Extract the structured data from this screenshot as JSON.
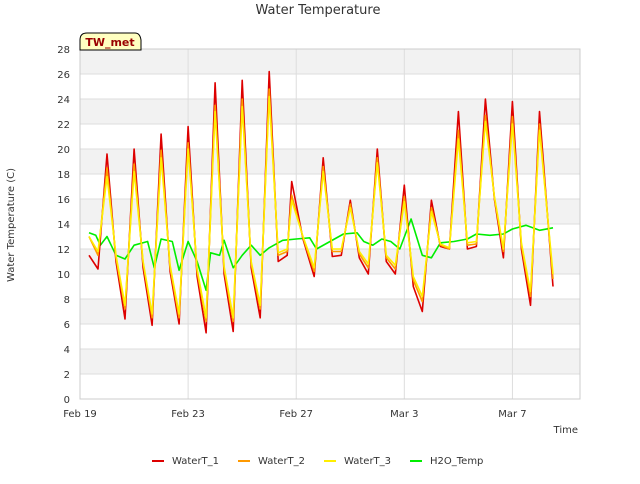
{
  "chart_data": {
    "type": "line",
    "title": "Water Temperature",
    "xlabel": "Time",
    "ylabel": "Water Temperature (C)",
    "site_label": "TW_met",
    "x_unit": "date",
    "xlim": [
      "2022-02-19",
      "2022-03-09T12:00"
    ],
    "ylim": [
      0,
      28
    ],
    "y_ticks": [
      0,
      2,
      4,
      6,
      8,
      10,
      12,
      14,
      16,
      18,
      20,
      22,
      24,
      26,
      28
    ],
    "x_ticks": [
      {
        "date": "2022-02-19",
        "label": "Feb 19"
      },
      {
        "date": "2022-02-23",
        "label": "Feb 23"
      },
      {
        "date": "2022-02-27",
        "label": "Feb 27"
      },
      {
        "date": "2022-03-03",
        "label": "Mar 3"
      },
      {
        "date": "2022-03-07",
        "label": "Mar 7"
      }
    ],
    "grid": true,
    "banded_background": true,
    "legend_position": "bottom",
    "series": [
      {
        "name": "WaterT_1",
        "color": "#dd0000",
        "points": [
          [
            "2022-02-19T08:00",
            11.5
          ],
          [
            "2022-02-19T16:00",
            10.4
          ],
          [
            "2022-02-20T00:00",
            19.6
          ],
          [
            "2022-02-20T08:00",
            11.0
          ],
          [
            "2022-02-20T16:00",
            6.4
          ],
          [
            "2022-02-21T00:00",
            20.0
          ],
          [
            "2022-02-21T08:00",
            10.5
          ],
          [
            "2022-02-21T16:00",
            5.9
          ],
          [
            "2022-02-22T00:00",
            21.2
          ],
          [
            "2022-02-22T08:00",
            10.2
          ],
          [
            "2022-02-22T16:00",
            6.0
          ],
          [
            "2022-02-23T00:00",
            21.8
          ],
          [
            "2022-02-23T08:00",
            9.8
          ],
          [
            "2022-02-23T16:00",
            5.3
          ],
          [
            "2022-02-24T00:00",
            25.3
          ],
          [
            "2022-02-24T08:00",
            10.0
          ],
          [
            "2022-02-24T16:00",
            5.4
          ],
          [
            "2022-02-25T00:00",
            25.5
          ],
          [
            "2022-02-25T08:00",
            10.5
          ],
          [
            "2022-02-25T16:00",
            6.5
          ],
          [
            "2022-02-26T00:00",
            26.2
          ],
          [
            "2022-02-26T08:00",
            11.0
          ],
          [
            "2022-02-26T16:00",
            11.5
          ],
          [
            "2022-02-26T20:00",
            17.4
          ],
          [
            "2022-02-27T06:00",
            12.8
          ],
          [
            "2022-02-27T16:00",
            9.8
          ],
          [
            "2022-02-28T00:00",
            19.3
          ],
          [
            "2022-02-28T08:00",
            11.4
          ],
          [
            "2022-02-28T16:00",
            11.5
          ],
          [
            "2022-02-29T00:00",
            15.9
          ],
          [
            "2022-03-01T08:00",
            11.3
          ],
          [
            "2022-03-01T16:00",
            10.0
          ],
          [
            "2022-03-02T00:00",
            20.0
          ],
          [
            "2022-03-02T08:00",
            11.0
          ],
          [
            "2022-03-02T16:00",
            10.0
          ],
          [
            "2022-03-03T00:00",
            17.1
          ],
          [
            "2022-03-03T08:00",
            9.0
          ],
          [
            "2022-03-03T16:00",
            7.0
          ],
          [
            "2022-03-04T00:00",
            15.9
          ],
          [
            "2022-03-04T08:00",
            12.2
          ],
          [
            "2022-03-04T16:00",
            12.0
          ],
          [
            "2022-03-05T00:00",
            23.0
          ],
          [
            "2022-03-05T08:00",
            12.0
          ],
          [
            "2022-03-05T16:00",
            12.2
          ],
          [
            "2022-03-06T00:00",
            24.0
          ],
          [
            "2022-03-06T08:00",
            16.0
          ],
          [
            "2022-03-06T16:00",
            11.3
          ],
          [
            "2022-03-07T00:00",
            23.8
          ],
          [
            "2022-03-07T08:00",
            12.0
          ],
          [
            "2022-03-07T16:00",
            7.5
          ],
          [
            "2022-03-08T00:00",
            23.0
          ],
          [
            "2022-03-08T12:00",
            9.0
          ]
        ]
      },
      {
        "name": "WaterT_2",
        "color": "#ff9900",
        "points": [
          [
            "2022-02-19T08:00",
            13.0
          ],
          [
            "2022-02-19T16:00",
            11.5
          ],
          [
            "2022-02-20T00:00",
            18.5
          ],
          [
            "2022-02-20T08:00",
            11.3
          ],
          [
            "2022-02-20T16:00",
            7.2
          ],
          [
            "2022-02-21T00:00",
            18.8
          ],
          [
            "2022-02-21T08:00",
            10.9
          ],
          [
            "2022-02-21T16:00",
            6.5
          ],
          [
            "2022-02-22T00:00",
            19.9
          ],
          [
            "2022-02-22T08:00",
            10.5
          ],
          [
            "2022-02-22T16:00",
            6.5
          ],
          [
            "2022-02-23T00:00",
            20.5
          ],
          [
            "2022-02-23T08:00",
            10.2
          ],
          [
            "2022-02-23T16:00",
            6.2
          ],
          [
            "2022-02-24T00:00",
            23.5
          ],
          [
            "2022-02-24T08:00",
            10.4
          ],
          [
            "2022-02-24T16:00",
            6.2
          ],
          [
            "2022-02-25T00:00",
            24.0
          ],
          [
            "2022-02-25T08:00",
            10.8
          ],
          [
            "2022-02-25T16:00",
            7.2
          ],
          [
            "2022-02-26T00:00",
            24.8
          ],
          [
            "2022-02-26T08:00",
            11.5
          ],
          [
            "2022-02-26T16:00",
            11.8
          ],
          [
            "2022-02-26T20:00",
            16.3
          ],
          [
            "2022-02-27T06:00",
            12.9
          ],
          [
            "2022-02-27T16:00",
            10.2
          ],
          [
            "2022-02-28T00:00",
            18.6
          ],
          [
            "2022-02-28T08:00",
            11.8
          ],
          [
            "2022-02-28T16:00",
            11.8
          ],
          [
            "2022-02-29T00:00",
            15.6
          ],
          [
            "2022-03-01T08:00",
            11.6
          ],
          [
            "2022-03-01T16:00",
            10.5
          ],
          [
            "2022-03-02T00:00",
            19.3
          ],
          [
            "2022-03-02T08:00",
            11.3
          ],
          [
            "2022-03-02T16:00",
            10.4
          ],
          [
            "2022-03-03T00:00",
            16.2
          ],
          [
            "2022-03-03T08:00",
            9.5
          ],
          [
            "2022-03-03T16:00",
            7.8
          ],
          [
            "2022-03-04T00:00",
            15.3
          ],
          [
            "2022-03-04T08:00",
            12.3
          ],
          [
            "2022-03-04T16:00",
            12.0
          ],
          [
            "2022-03-05T00:00",
            21.5
          ],
          [
            "2022-03-05T08:00",
            12.3
          ],
          [
            "2022-03-05T16:00",
            12.4
          ],
          [
            "2022-03-06T00:00",
            22.7
          ],
          [
            "2022-03-06T08:00",
            16.1
          ],
          [
            "2022-03-06T16:00",
            11.8
          ],
          [
            "2022-03-07T00:00",
            22.6
          ],
          [
            "2022-03-07T08:00",
            12.3
          ],
          [
            "2022-03-07T16:00",
            8.2
          ],
          [
            "2022-03-08T00:00",
            22.0
          ],
          [
            "2022-03-08T12:00",
            9.6
          ]
        ]
      },
      {
        "name": "WaterT_3",
        "color": "#ffee00",
        "points": [
          [
            "2022-02-19T08:00",
            13.0
          ],
          [
            "2022-02-19T16:00",
            11.8
          ],
          [
            "2022-02-20T00:00",
            17.8
          ],
          [
            "2022-02-20T08:00",
            11.5
          ],
          [
            "2022-02-20T16:00",
            7.5
          ],
          [
            "2022-02-21T00:00",
            18.2
          ],
          [
            "2022-02-21T08:00",
            11.0
          ],
          [
            "2022-02-21T16:00",
            6.8
          ],
          [
            "2022-02-22T00:00",
            19.3
          ],
          [
            "2022-02-22T08:00",
            10.7
          ],
          [
            "2022-02-22T16:00",
            6.8
          ],
          [
            "2022-02-23T00:00",
            20.0
          ],
          [
            "2022-02-23T08:00",
            10.4
          ],
          [
            "2022-02-23T16:00",
            6.5
          ],
          [
            "2022-02-24T00:00",
            23.0
          ],
          [
            "2022-02-24T08:00",
            10.6
          ],
          [
            "2022-02-24T16:00",
            6.5
          ],
          [
            "2022-02-25T00:00",
            23.4
          ],
          [
            "2022-02-25T08:00",
            11.0
          ],
          [
            "2022-02-25T16:00",
            7.5
          ],
          [
            "2022-02-26T00:00",
            24.2
          ],
          [
            "2022-02-26T08:00",
            11.7
          ],
          [
            "2022-02-26T16:00",
            12.0
          ],
          [
            "2022-02-26T20:00",
            15.9
          ],
          [
            "2022-02-27T06:00",
            13.0
          ],
          [
            "2022-02-27T16:00",
            10.5
          ],
          [
            "2022-02-28T00:00",
            18.2
          ],
          [
            "2022-02-28T08:00",
            12.0
          ],
          [
            "2022-02-28T16:00",
            12.0
          ],
          [
            "2022-02-29T00:00",
            15.3
          ],
          [
            "2022-03-01T08:00",
            11.8
          ],
          [
            "2022-03-01T16:00",
            10.8
          ],
          [
            "2022-03-02T00:00",
            18.9
          ],
          [
            "2022-03-02T08:00",
            11.5
          ],
          [
            "2022-03-02T16:00",
            10.7
          ],
          [
            "2022-03-03T00:00",
            15.8
          ],
          [
            "2022-03-03T08:00",
            9.8
          ],
          [
            "2022-03-03T16:00",
            8.2
          ],
          [
            "2022-03-04T00:00",
            15.0
          ],
          [
            "2022-03-04T08:00",
            12.4
          ],
          [
            "2022-03-04T16:00",
            12.1
          ],
          [
            "2022-03-05T00:00",
            20.8
          ],
          [
            "2022-03-05T08:00",
            12.5
          ],
          [
            "2022-03-05T16:00",
            12.6
          ],
          [
            "2022-03-06T00:00",
            22.2
          ],
          [
            "2022-03-06T08:00",
            16.2
          ],
          [
            "2022-03-06T16:00",
            12.0
          ],
          [
            "2022-03-07T00:00",
            22.0
          ],
          [
            "2022-03-07T08:00",
            12.5
          ],
          [
            "2022-03-07T16:00",
            8.6
          ],
          [
            "2022-03-08T00:00",
            21.5
          ],
          [
            "2022-03-08T12:00",
            10.0
          ]
        ]
      },
      {
        "name": "H2O_Temp",
        "color": "#00ee00",
        "points": [
          [
            "2022-02-19T08:00",
            13.3
          ],
          [
            "2022-02-19T14:00",
            13.1
          ],
          [
            "2022-02-19T18:00",
            12.3
          ],
          [
            "2022-02-20T00:00",
            13.0
          ],
          [
            "2022-02-20T08:00",
            11.5
          ],
          [
            "2022-02-20T16:00",
            11.2
          ],
          [
            "2022-02-21T00:00",
            12.3
          ],
          [
            "2022-02-21T12:00",
            12.6
          ],
          [
            "2022-02-21T18:00",
            10.5
          ],
          [
            "2022-02-22T00:00",
            12.8
          ],
          [
            "2022-02-22T10:00",
            12.6
          ],
          [
            "2022-02-22T16:00",
            10.3
          ],
          [
            "2022-02-23T00:00",
            12.6
          ],
          [
            "2022-02-23T08:00",
            11.0
          ],
          [
            "2022-02-23T16:00",
            8.7
          ],
          [
            "2022-02-23T20:00",
            11.7
          ],
          [
            "2022-02-24T04:00",
            11.5
          ],
          [
            "2022-02-24T08:00",
            12.7
          ],
          [
            "2022-02-24T16:00",
            10.5
          ],
          [
            "2022-02-25T00:00",
            11.5
          ],
          [
            "2022-02-25T08:00",
            12.3
          ],
          [
            "2022-02-25T16:00",
            11.5
          ],
          [
            "2022-02-26T00:00",
            12.1
          ],
          [
            "2022-02-26T12:00",
            12.7
          ],
          [
            "2022-02-27T00:00",
            12.8
          ],
          [
            "2022-02-27T12:00",
            12.9
          ],
          [
            "2022-02-27T18:00",
            12.0
          ],
          [
            "2022-02-28T06:00",
            12.6
          ],
          [
            "2022-02-28T18:00",
            13.2
          ],
          [
            "2022-03-01T06:00",
            13.3
          ],
          [
            "2022-03-01T12:00",
            12.6
          ],
          [
            "2022-03-01T20:00",
            12.3
          ],
          [
            "2022-03-02T04:00",
            12.8
          ],
          [
            "2022-03-02T12:00",
            12.6
          ],
          [
            "2022-03-02T20:00",
            12.0
          ],
          [
            "2022-03-03T06:00",
            14.4
          ],
          [
            "2022-03-03T16:00",
            11.5
          ],
          [
            "2022-03-04T00:00",
            11.3
          ],
          [
            "2022-03-04T08:00",
            12.5
          ],
          [
            "2022-03-04T20:00",
            12.6
          ],
          [
            "2022-03-05T08:00",
            12.8
          ],
          [
            "2022-03-05T16:00",
            13.2
          ],
          [
            "2022-03-06T04:00",
            13.1
          ],
          [
            "2022-03-06T16:00",
            13.2
          ],
          [
            "2022-03-07T00:00",
            13.6
          ],
          [
            "2022-03-07T12:00",
            13.9
          ],
          [
            "2022-03-08T00:00",
            13.5
          ],
          [
            "2022-03-08T12:00",
            13.7
          ]
        ]
      }
    ]
  }
}
